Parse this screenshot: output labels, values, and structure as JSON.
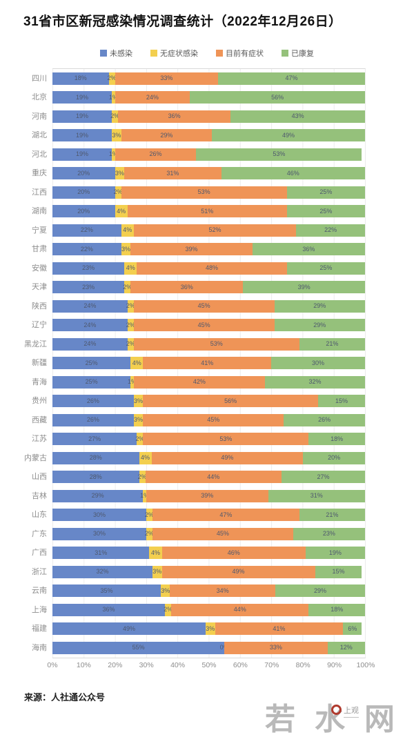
{
  "title": "31省市区新冠感染情况调查统计（2022年12月26日）",
  "source": "来源：人社通公众号",
  "watermark": {
    "chars": [
      "若",
      "水",
      "网"
    ],
    "logo_text": "上观"
  },
  "x_axis": {
    "ticks": [
      "0%",
      "10%",
      "20%",
      "30%",
      "40%",
      "50%",
      "60%",
      "70%",
      "80%",
      "90%",
      "100%"
    ]
  },
  "colors": {
    "blue": "#6787c8",
    "yellow": "#f3cf4f",
    "orange": "#ef9457",
    "green": "#95c17b"
  },
  "chart_data": {
    "type": "bar",
    "stacked": true,
    "orientation": "horizontal",
    "title": "31省市区新冠感染情况调查统计（2022年12月26日）",
    "xlim": [
      0,
      100
    ],
    "value_suffix": "%",
    "grid": true,
    "legend_position": "top",
    "categories": [
      "四川",
      "北京",
      "河南",
      "湖北",
      "河北",
      "重庆",
      "江西",
      "湖南",
      "宁夏",
      "甘肃",
      "安徽",
      "天津",
      "陕西",
      "辽宁",
      "黑龙江",
      "新疆",
      "青海",
      "贵州",
      "西藏",
      "江苏",
      "内蒙古",
      "山西",
      "吉林",
      "山东",
      "广东",
      "广西",
      "浙江",
      "云南",
      "上海",
      "福建",
      "海南"
    ],
    "series": [
      {
        "name": "未感染",
        "color": "#6787c8",
        "values": [
          18,
          19,
          19,
          19,
          19,
          20,
          20,
          20,
          22,
          22,
          23,
          23,
          24,
          24,
          24,
          25,
          25,
          26,
          26,
          27,
          28,
          28,
          29,
          30,
          30,
          31,
          32,
          35,
          36,
          49,
          55
        ]
      },
      {
        "name": "无症状感染",
        "color": "#f3cf4f",
        "values": [
          2,
          1,
          2,
          3,
          1,
          3,
          2,
          4,
          4,
          3,
          4,
          2,
          2,
          2,
          2,
          4,
          1,
          3,
          3,
          2,
          4,
          2,
          1,
          2,
          2,
          4,
          3,
          3,
          2,
          3,
          0
        ]
      },
      {
        "name": "目前有症状",
        "color": "#ef9457",
        "values": [
          33,
          24,
          36,
          29,
          26,
          31,
          53,
          51,
          52,
          39,
          48,
          36,
          45,
          45,
          53,
          41,
          42,
          56,
          45,
          53,
          49,
          44,
          39,
          47,
          45,
          46,
          49,
          34,
          44,
          41,
          33
        ]
      },
      {
        "name": "已康复",
        "color": "#95c17b",
        "values": [
          47,
          56,
          43,
          49,
          53,
          46,
          25,
          25,
          22,
          36,
          25,
          39,
          29,
          29,
          21,
          30,
          32,
          15,
          26,
          18,
          20,
          27,
          31,
          21,
          23,
          19,
          15,
          29,
          18,
          6,
          12
        ]
      }
    ]
  }
}
